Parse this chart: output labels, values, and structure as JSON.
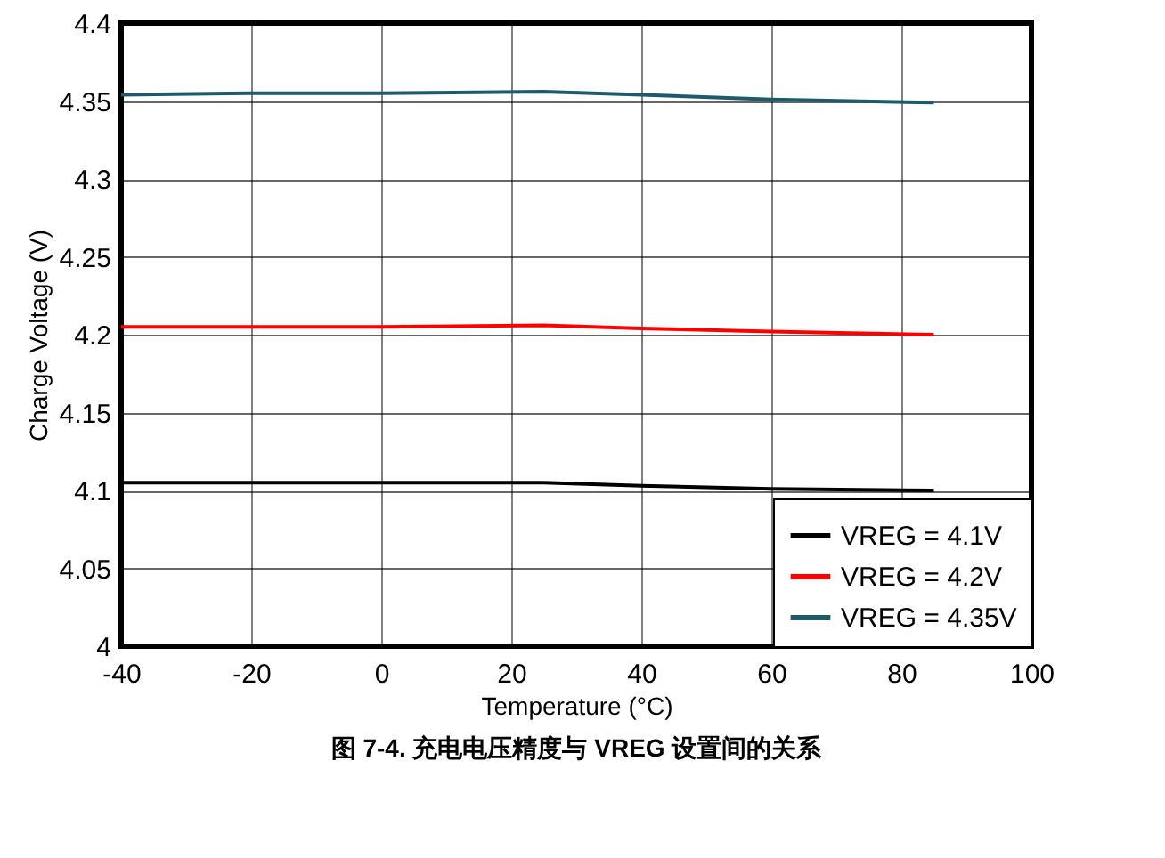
{
  "chart_data": {
    "type": "line",
    "title": "图 7-4. 充电电压精度与 VREG 设置间的关系",
    "xlabel": "Temperature (°C)",
    "ylabel": "Charge Voltage (V)",
    "x": [
      -40,
      -20,
      0,
      25,
      40,
      60,
      85
    ],
    "series": [
      {
        "name": "VREG = 4.1V",
        "color": "#000000",
        "values": [
          4.105,
          4.105,
          4.105,
          4.105,
          4.103,
          4.101,
          4.1
        ]
      },
      {
        "name": "VREG = 4.2V",
        "color": "#ff0000",
        "values": [
          4.205,
          4.205,
          4.205,
          4.206,
          4.204,
          4.202,
          4.2
        ]
      },
      {
        "name": "VREG = 4.35V",
        "color": "#1f5a6b",
        "values": [
          4.354,
          4.355,
          4.355,
          4.356,
          4.354,
          4.351,
          4.349
        ]
      }
    ],
    "xlim": [
      -40,
      100
    ],
    "xticks": [
      -40,
      -20,
      0,
      20,
      40,
      60,
      80,
      100
    ],
    "ylim": [
      4,
      4.4
    ],
    "yticks": [
      4,
      4.05,
      4.1,
      4.15,
      4.2,
      4.25,
      4.3,
      4.35,
      4.4
    ],
    "grid": true,
    "legend": "bottom right",
    "marker": "none",
    "line_style": "solid"
  }
}
